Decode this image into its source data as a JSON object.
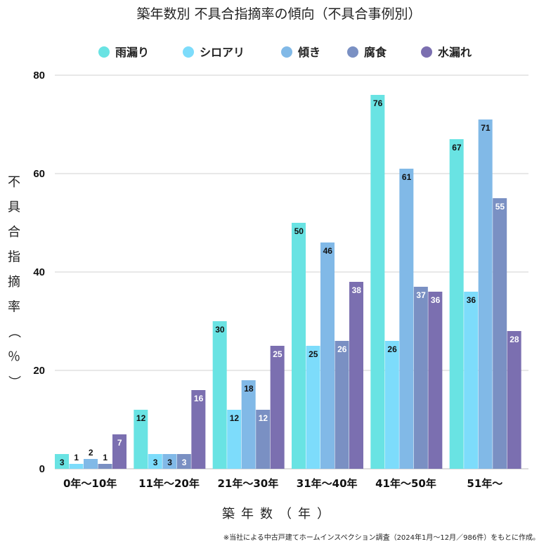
{
  "chart_data": {
    "type": "bar",
    "title": "築年数別 不具合指摘率の傾向（不具合事例別）",
    "xlabel": "築年数（年）",
    "ylabel": "不具合指摘率（％）",
    "ylim": [
      0,
      80
    ],
    "yticks": [
      "0",
      "20",
      "40",
      "60",
      "80"
    ],
    "grid": true,
    "legend_position": "top",
    "categories": [
      "0年～10年",
      "11年～20年",
      "21年～30年",
      "31年～40年",
      "41年～50年",
      "51年～"
    ],
    "series": [
      {
        "name": "雨漏り",
        "color": "#69e3e3",
        "values": [
          3,
          12,
          30,
          50,
          76,
          67
        ]
      },
      {
        "name": "シロアリ",
        "color": "#7ddcfb",
        "values": [
          1,
          3,
          12,
          25,
          26,
          36
        ]
      },
      {
        "name": "傾き",
        "color": "#81b9e7",
        "values": [
          2,
          3,
          18,
          46,
          61,
          71
        ]
      },
      {
        "name": "腐食",
        "color": "#7a90c3",
        "values": [
          1,
          3,
          12,
          26,
          37,
          55
        ]
      },
      {
        "name": "水漏れ",
        "color": "#7b6fb0",
        "values": [
          7,
          16,
          25,
          38,
          36,
          28
        ]
      }
    ],
    "footnote": "※当社による中古戸建てホームインスペクション調査（2024年1月～12月／986件）をもとに作成。"
  }
}
